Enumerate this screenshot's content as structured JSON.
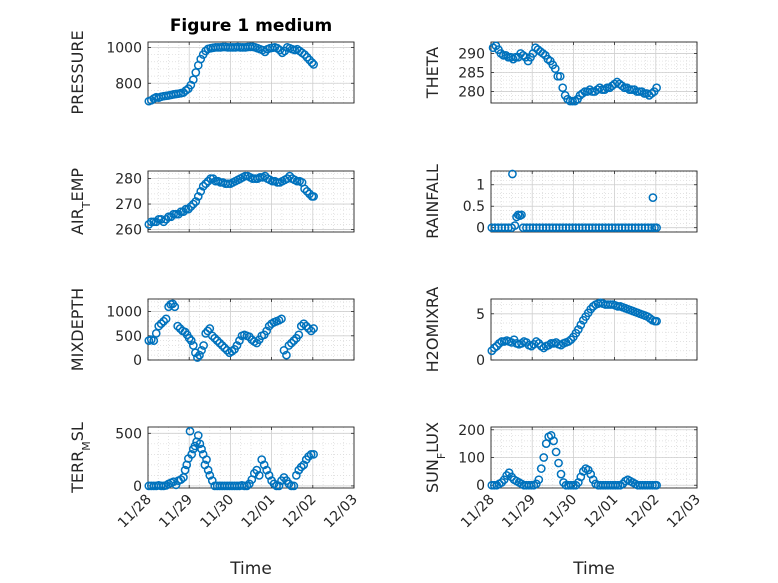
{
  "figure": {
    "title": "Figure 1 medium",
    "xlabel": "Time"
  },
  "colors": {
    "marker": "#0072bd",
    "axes": "#262626",
    "grid": "#d9d9d9",
    "background": "#ffffff"
  },
  "chart_data": [
    {
      "type": "scatter",
      "ylabel": "PRESSURE",
      "ylim": [
        690,
        1030
      ],
      "yticks": [
        800,
        1000
      ],
      "ytick_labels": [
        "800",
        "1000"
      ],
      "grid": true,
      "xlim": [
        0,
        5
      ],
      "xticks": [
        0,
        1,
        2,
        3,
        4,
        5
      ],
      "xtick_labels": [
        "11/28",
        "11/29",
        "11/30",
        "12/01",
        "12/02",
        "12/03"
      ],
      "x": [
        0.02,
        0.08,
        0.14,
        0.2,
        0.26,
        0.32,
        0.38,
        0.44,
        0.5,
        0.56,
        0.62,
        0.68,
        0.74,
        0.8,
        0.86,
        0.92,
        0.98,
        1.04,
        1.1,
        1.16,
        1.22,
        1.28,
        1.34,
        1.4,
        1.46,
        1.52,
        1.58,
        1.64,
        1.7,
        1.76,
        1.82,
        1.88,
        1.94,
        2.0,
        2.06,
        2.12,
        2.18,
        2.24,
        2.3,
        2.36,
        2.42,
        2.48,
        2.54,
        2.6,
        2.66,
        2.72,
        2.78,
        2.84,
        2.9,
        2.96,
        3.02,
        3.08,
        3.14,
        3.2,
        3.26,
        3.32,
        3.38,
        3.44,
        3.5,
        3.56,
        3.62,
        3.68,
        3.74,
        3.8,
        3.86,
        3.92,
        3.98,
        4.02
      ],
      "y": [
        700,
        705,
        715,
        722,
        720,
        725,
        728,
        730,
        732,
        735,
        738,
        740,
        742,
        745,
        748,
        760,
        770,
        790,
        820,
        860,
        900,
        935,
        960,
        980,
        992,
        995,
        998,
        1000,
        1000,
        1000,
        1002,
        1002,
        1000,
        1000,
        1000,
        1000,
        1002,
        1000,
        1000,
        1000,
        1002,
        1003,
        1003,
        1000,
        995,
        990,
        985,
        975,
        990,
        995,
        998,
        1000,
        995,
        985,
        970,
        980,
        1000,
        995,
        990,
        985,
        990,
        980,
        970,
        960,
        945,
        930,
        915,
        905
      ]
    },
    {
      "type": "scatter",
      "ylabel": "THETA",
      "ylim": [
        277,
        293
      ],
      "yticks": [
        280,
        285,
        290
      ],
      "ytick_labels": [
        "280",
        "285",
        "290"
      ],
      "grid": true,
      "xlim": [
        0,
        5
      ],
      "xticks": [
        0,
        1,
        2,
        3,
        4,
        5
      ],
      "xtick_labels": [
        "11/28",
        "11/29",
        "11/30",
        "12/01",
        "12/02",
        "12/03"
      ],
      "x": [
        0.05,
        0.12,
        0.18,
        0.24,
        0.3,
        0.36,
        0.42,
        0.48,
        0.54,
        0.6,
        0.66,
        0.72,
        0.78,
        0.84,
        0.9,
        0.96,
        1.02,
        1.08,
        1.14,
        1.2,
        1.26,
        1.32,
        1.38,
        1.44,
        1.5,
        1.56,
        1.62,
        1.68,
        1.74,
        1.8,
        1.86,
        1.92,
        1.98,
        2.04,
        2.1,
        2.16,
        2.22,
        2.28,
        2.34,
        2.4,
        2.46,
        2.52,
        2.58,
        2.64,
        2.7,
        2.76,
        2.82,
        2.88,
        2.94,
        3.0,
        3.06,
        3.12,
        3.18,
        3.24,
        3.3,
        3.36,
        3.42,
        3.48,
        3.54,
        3.6,
        3.66,
        3.72,
        3.78,
        3.84,
        3.9,
        3.96,
        4.02
      ],
      "y": [
        291.5,
        292,
        291,
        290,
        289.5,
        289.5,
        289,
        289,
        288.5,
        289,
        289,
        290,
        289.5,
        289,
        288,
        289,
        290,
        291.5,
        291,
        290.5,
        290,
        289.5,
        288.5,
        288,
        287,
        286,
        284,
        284,
        281,
        279,
        278,
        277.5,
        277.5,
        277.5,
        278,
        279,
        279.5,
        280,
        280,
        280.5,
        280,
        280,
        280.5,
        281,
        280.5,
        280.5,
        281,
        281,
        281.5,
        282,
        282.5,
        282,
        281.5,
        281,
        281,
        280.5,
        280.5,
        280.5,
        280,
        280,
        280,
        279.5,
        279.5,
        279,
        279.5,
        280,
        281
      ]
    },
    {
      "type": "scatter",
      "ylabel": "AIR_TEMP",
      "ylim": [
        259,
        283
      ],
      "yticks": [
        260,
        270,
        280
      ],
      "ytick_labels": [
        "260",
        "270",
        "280"
      ],
      "grid": true,
      "xlim": [
        0,
        5
      ],
      "xticks": [
        0,
        1,
        2,
        3,
        4,
        5
      ],
      "xtick_labels": [
        "11/28",
        "11/29",
        "11/30",
        "12/01",
        "12/02",
        "12/03"
      ],
      "x": [
        0.02,
        0.08,
        0.14,
        0.2,
        0.26,
        0.32,
        0.38,
        0.44,
        0.5,
        0.56,
        0.62,
        0.68,
        0.74,
        0.8,
        0.86,
        0.92,
        0.98,
        1.04,
        1.1,
        1.16,
        1.22,
        1.28,
        1.34,
        1.4,
        1.46,
        1.52,
        1.58,
        1.64,
        1.7,
        1.76,
        1.82,
        1.88,
        1.94,
        2.0,
        2.06,
        2.12,
        2.18,
        2.24,
        2.3,
        2.36,
        2.42,
        2.48,
        2.54,
        2.6,
        2.66,
        2.72,
        2.78,
        2.84,
        2.9,
        2.96,
        3.02,
        3.08,
        3.14,
        3.2,
        3.26,
        3.32,
        3.38,
        3.44,
        3.5,
        3.56,
        3.62,
        3.68,
        3.74,
        3.8,
        3.86,
        3.92,
        3.98,
        4.02
      ],
      "y": [
        262,
        263,
        263,
        263,
        264,
        264,
        263,
        264,
        265,
        265,
        266,
        266,
        266,
        267,
        267,
        268,
        268,
        269,
        270,
        271,
        273,
        275,
        277,
        278,
        279,
        280,
        280,
        279,
        279,
        278.5,
        278.5,
        278,
        278,
        278,
        278.5,
        279,
        279.5,
        280,
        280.5,
        281,
        281,
        280.5,
        280,
        280,
        280,
        280.5,
        280.5,
        281,
        280,
        279.5,
        279,
        279,
        278.5,
        278.5,
        279,
        279.5,
        280,
        281,
        280,
        279.5,
        279,
        279,
        278.5,
        276,
        275,
        274,
        273,
        273
      ]
    },
    {
      "type": "scatter",
      "ylabel": "RAINFALL",
      "ylim": [
        -0.1,
        1.32
      ],
      "yticks": [
        0,
        0.5,
        1
      ],
      "ytick_labels": [
        "0",
        "0.5",
        "1"
      ],
      "grid": true,
      "xlim": [
        0,
        5
      ],
      "xticks": [
        0,
        1,
        2,
        3,
        4,
        5
      ],
      "xtick_labels": [
        "11/28",
        "11/29",
        "11/30",
        "12/01",
        "12/02",
        "12/03"
      ],
      "x": [
        0.02,
        0.1,
        0.18,
        0.26,
        0.34,
        0.42,
        0.5,
        0.52,
        0.58,
        0.62,
        0.66,
        0.7,
        0.74,
        0.78,
        0.86,
        0.94,
        1.02,
        1.1,
        1.18,
        1.26,
        1.34,
        1.42,
        1.5,
        1.58,
        1.66,
        1.74,
        1.82,
        1.9,
        1.98,
        2.06,
        2.14,
        2.22,
        2.3,
        2.38,
        2.46,
        2.54,
        2.62,
        2.7,
        2.78,
        2.86,
        2.94,
        3.02,
        3.1,
        3.18,
        3.26,
        3.34,
        3.42,
        3.5,
        3.58,
        3.66,
        3.74,
        3.82,
        3.9,
        3.93,
        3.97,
        4.02
      ],
      "y": [
        0,
        0,
        0,
        0,
        0,
        0,
        0,
        1.25,
        0.05,
        0.25,
        0.3,
        0.28,
        0.3,
        0,
        0,
        0,
        0,
        0,
        0,
        0,
        0,
        0,
        0,
        0,
        0,
        0,
        0,
        0,
        0,
        0,
        0,
        0,
        0,
        0,
        0,
        0,
        0,
        0,
        0,
        0,
        0,
        0,
        0,
        0,
        0,
        0,
        0,
        0,
        0,
        0,
        0,
        0,
        0,
        0.7,
        0,
        0
      ]
    },
    {
      "type": "scatter",
      "ylabel": "MIXDEPTH",
      "ylim": [
        0,
        1260
      ],
      "yticks": [
        0,
        500,
        1000
      ],
      "ytick_labels": [
        "0",
        "500",
        "1000"
      ],
      "grid": true,
      "xlim": [
        0,
        5
      ],
      "xticks": [
        0,
        1,
        2,
        3,
        4,
        5
      ],
      "xtick_labels": [
        "11/28",
        "11/29",
        "11/30",
        "12/01",
        "12/02",
        "12/03"
      ],
      "x": [
        0.02,
        0.08,
        0.14,
        0.2,
        0.26,
        0.32,
        0.38,
        0.44,
        0.5,
        0.55,
        0.6,
        0.65,
        0.72,
        0.78,
        0.84,
        0.9,
        0.95,
        1.0,
        1.05,
        1.1,
        1.15,
        1.2,
        1.25,
        1.3,
        1.35,
        1.4,
        1.45,
        1.5,
        1.56,
        1.62,
        1.68,
        1.74,
        1.8,
        1.86,
        1.92,
        1.98,
        2.04,
        2.1,
        2.16,
        2.22,
        2.28,
        2.34,
        2.4,
        2.46,
        2.52,
        2.58,
        2.64,
        2.7,
        2.76,
        2.82,
        2.88,
        2.94,
        3.0,
        3.06,
        3.12,
        3.18,
        3.24,
        3.3,
        3.36,
        3.42,
        3.48,
        3.54,
        3.6,
        3.66,
        3.72,
        3.78,
        3.84,
        3.9,
        3.96,
        4.02
      ],
      "y": [
        400,
        420,
        400,
        550,
        700,
        750,
        800,
        850,
        1100,
        1150,
        1160,
        1100,
        700,
        650,
        600,
        580,
        520,
        450,
        400,
        300,
        150,
        50,
        100,
        200,
        300,
        550,
        600,
        650,
        500,
        450,
        400,
        350,
        300,
        250,
        200,
        150,
        180,
        220,
        300,
        400,
        500,
        520,
        500,
        480,
        420,
        380,
        350,
        420,
        500,
        520,
        600,
        700,
        750,
        780,
        800,
        820,
        850,
        200,
        100,
        300,
        350,
        400,
        450,
        520,
        700,
        750,
        700,
        650,
        600,
        650
      ]
    },
    {
      "type": "scatter",
      "ylabel": "H2OMIXRA",
      "ylim": [
        0,
        6.6
      ],
      "yticks": [
        0,
        5
      ],
      "ytick_labels": [
        "0",
        "5"
      ],
      "grid": true,
      "xlim": [
        0,
        5
      ],
      "xticks": [
        0,
        1,
        2,
        3,
        4,
        5
      ],
      "xtick_labels": [
        "11/28",
        "11/29",
        "11/30",
        "12/01",
        "12/02",
        "12/03"
      ],
      "x": [
        0.02,
        0.08,
        0.14,
        0.2,
        0.26,
        0.32,
        0.38,
        0.44,
        0.5,
        0.56,
        0.62,
        0.68,
        0.74,
        0.8,
        0.86,
        0.92,
        0.98,
        1.04,
        1.1,
        1.16,
        1.22,
        1.28,
        1.34,
        1.4,
        1.46,
        1.52,
        1.58,
        1.64,
        1.7,
        1.76,
        1.82,
        1.88,
        1.94,
        2.0,
        2.06,
        2.12,
        2.18,
        2.24,
        2.3,
        2.36,
        2.42,
        2.48,
        2.54,
        2.6,
        2.66,
        2.72,
        2.78,
        2.84,
        2.9,
        2.96,
        3.02,
        3.08,
        3.14,
        3.2,
        3.26,
        3.32,
        3.38,
        3.44,
        3.5,
        3.56,
        3.62,
        3.68,
        3.74,
        3.8,
        3.86,
        3.92,
        3.98,
        4.02
      ],
      "y": [
        1.0,
        1.3,
        1.5,
        1.8,
        2.0,
        2.0,
        2.1,
        2.0,
        1.9,
        2.2,
        1.8,
        1.7,
        1.8,
        2.0,
        1.9,
        1.6,
        1.5,
        1.7,
        2.0,
        1.8,
        1.5,
        1.3,
        1.5,
        1.6,
        1.8,
        1.8,
        1.9,
        1.7,
        1.6,
        1.8,
        1.9,
        2.0,
        2.2,
        2.5,
        2.9,
        3.3,
        3.8,
        4.3,
        4.7,
        5.1,
        5.5,
        5.8,
        6.0,
        6.1,
        6.2,
        6.1,
        6.0,
        6.0,
        6.0,
        6.0,
        5.9,
        5.8,
        5.8,
        5.7,
        5.6,
        5.5,
        5.4,
        5.3,
        5.2,
        5.1,
        5.0,
        4.9,
        4.8,
        4.7,
        4.5,
        4.3,
        4.2,
        4.2
      ]
    },
    {
      "type": "scatter",
      "ylabel": "TERR_MSL",
      "ylim": [
        -20,
        560
      ],
      "yticks": [
        0,
        500
      ],
      "ytick_labels": [
        "0",
        "500"
      ],
      "grid": true,
      "xlim": [
        0,
        5
      ],
      "xticks": [
        0,
        1,
        2,
        3,
        4,
        5
      ],
      "xtick_labels": [
        "11/28",
        "11/29",
        "11/30",
        "12/01",
        "12/02",
        "12/03"
      ],
      "x": [
        0.02,
        0.08,
        0.14,
        0.2,
        0.26,
        0.32,
        0.38,
        0.44,
        0.5,
        0.56,
        0.62,
        0.68,
        0.74,
        0.8,
        0.86,
        0.9,
        0.94,
        0.98,
        1.02,
        1.06,
        1.1,
        1.14,
        1.18,
        1.22,
        1.26,
        1.3,
        1.34,
        1.38,
        1.42,
        1.46,
        1.5,
        1.56,
        1.62,
        1.68,
        1.74,
        1.8,
        1.86,
        1.92,
        1.98,
        2.04,
        2.1,
        2.16,
        2.22,
        2.28,
        2.34,
        2.4,
        2.46,
        2.52,
        2.58,
        2.64,
        2.7,
        2.76,
        2.82,
        2.88,
        2.94,
        3.0,
        3.06,
        3.12,
        3.18,
        3.24,
        3.3,
        3.36,
        3.42,
        3.48,
        3.54,
        3.6,
        3.66,
        3.72,
        3.78,
        3.84,
        3.9,
        3.96,
        4.02
      ],
      "y": [
        0,
        0,
        0,
        0,
        5,
        0,
        0,
        5,
        20,
        30,
        40,
        10,
        50,
        60,
        80,
        150,
        200,
        260,
        520,
        300,
        350,
        380,
        420,
        480,
        400,
        350,
        300,
        200,
        250,
        150,
        100,
        50,
        0,
        0,
        0,
        0,
        0,
        0,
        0,
        0,
        0,
        0,
        0,
        5,
        0,
        0,
        20,
        60,
        120,
        150,
        100,
        250,
        200,
        150,
        100,
        50,
        20,
        0,
        0,
        50,
        80,
        50,
        20,
        0,
        0,
        100,
        150,
        180,
        200,
        250,
        280,
        300,
        300
      ]
    },
    {
      "type": "scatter",
      "ylabel": "SUN_FLUX",
      "ylim": [
        -10,
        210
      ],
      "yticks": [
        0,
        100,
        200
      ],
      "ytick_labels": [
        "0",
        "100",
        "200"
      ],
      "grid": true,
      "xlim": [
        0,
        5
      ],
      "xticks": [
        0,
        1,
        2,
        3,
        4,
        5
      ],
      "xtick_labels": [
        "11/28",
        "11/29",
        "11/30",
        "12/01",
        "12/02",
        "12/03"
      ],
      "x": [
        0.02,
        0.08,
        0.14,
        0.2,
        0.26,
        0.32,
        0.38,
        0.44,
        0.5,
        0.56,
        0.62,
        0.68,
        0.74,
        0.8,
        0.86,
        0.92,
        0.98,
        1.04,
        1.1,
        1.16,
        1.22,
        1.28,
        1.34,
        1.4,
        1.46,
        1.52,
        1.58,
        1.64,
        1.7,
        1.76,
        1.82,
        1.88,
        1.94,
        2.0,
        2.06,
        2.12,
        2.18,
        2.24,
        2.3,
        2.36,
        2.42,
        2.48,
        2.54,
        2.6,
        2.66,
        2.72,
        2.78,
        2.84,
        2.9,
        2.96,
        3.02,
        3.08,
        3.14,
        3.2,
        3.26,
        3.32,
        3.38,
        3.44,
        3.5,
        3.56,
        3.62,
        3.68,
        3.74,
        3.8,
        3.86,
        3.92,
        3.98,
        4.02
      ],
      "y": [
        0,
        0,
        0,
        5,
        10,
        20,
        35,
        45,
        30,
        20,
        15,
        10,
        5,
        0,
        0,
        0,
        0,
        0,
        5,
        20,
        60,
        100,
        150,
        175,
        180,
        160,
        120,
        80,
        40,
        10,
        0,
        0,
        0,
        0,
        0,
        10,
        30,
        50,
        60,
        55,
        40,
        20,
        5,
        0,
        0,
        0,
        0,
        0,
        0,
        0,
        0,
        0,
        0,
        5,
        15,
        20,
        15,
        10,
        5,
        0,
        0,
        0,
        0,
        0,
        0,
        0,
        0,
        0
      ]
    }
  ]
}
